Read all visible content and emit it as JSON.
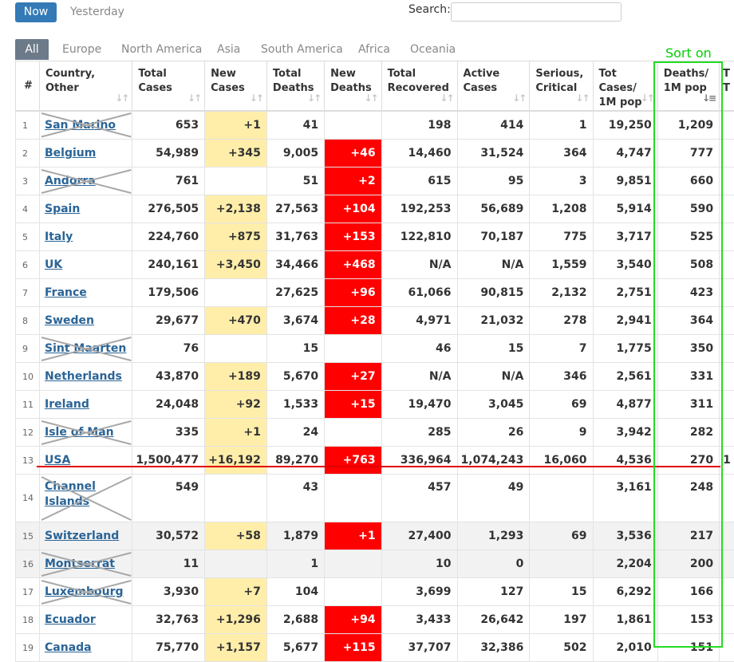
{
  "toolbar": {
    "now_label": "Now",
    "yesterday_label": "Yesterday",
    "search_label": "Search:",
    "search_value": ""
  },
  "tabs": [
    "All",
    "Europe",
    "North America",
    "Asia",
    "South America",
    "Africa",
    "Oceania"
  ],
  "annotation": {
    "sort_on": "Sort on",
    "box_color": "#22dd22",
    "line_color": "#e10000"
  },
  "columns": [
    {
      "line1": "#",
      "line2": ""
    },
    {
      "line1": "Country,",
      "line2": "Other"
    },
    {
      "line1": "Total",
      "line2": "Cases"
    },
    {
      "line1": "New",
      "line2": "Cases"
    },
    {
      "line1": "Total",
      "line2": "Deaths"
    },
    {
      "line1": "New",
      "line2": "Deaths"
    },
    {
      "line1": "Total",
      "line2": "Recovered"
    },
    {
      "line1": "Active",
      "line2": "Cases"
    },
    {
      "line1": "Serious,",
      "line2": "Critical"
    },
    {
      "line1": "Tot Cases/",
      "line2": "1M pop"
    },
    {
      "line1": "Deaths/",
      "line2": "1M pop"
    },
    {
      "line1": "T",
      "line2": "T"
    }
  ],
  "rows": [
    {
      "num": "1",
      "country": "San Marino",
      "total_cases": "653",
      "new_cases": "+1",
      "total_deaths": "41",
      "new_deaths": "",
      "total_recovered": "198",
      "active": "414",
      "serious": "1",
      "cases_per_m": "19,250",
      "deaths_per_m": "1,209",
      "crossed": true
    },
    {
      "num": "2",
      "country": "Belgium",
      "total_cases": "54,989",
      "new_cases": "+345",
      "total_deaths": "9,005",
      "new_deaths": "+46",
      "total_recovered": "14,460",
      "active": "31,524",
      "serious": "364",
      "cases_per_m": "4,747",
      "deaths_per_m": "777",
      "crossed": false
    },
    {
      "num": "3",
      "country": "Andorra",
      "total_cases": "761",
      "new_cases": "",
      "total_deaths": "51",
      "new_deaths": "+2",
      "total_recovered": "615",
      "active": "95",
      "serious": "3",
      "cases_per_m": "9,851",
      "deaths_per_m": "660",
      "crossed": true
    },
    {
      "num": "4",
      "country": "Spain",
      "total_cases": "276,505",
      "new_cases": "+2,138",
      "total_deaths": "27,563",
      "new_deaths": "+104",
      "total_recovered": "192,253",
      "active": "56,689",
      "serious": "1,208",
      "cases_per_m": "5,914",
      "deaths_per_m": "590",
      "crossed": false
    },
    {
      "num": "5",
      "country": "Italy",
      "total_cases": "224,760",
      "new_cases": "+875",
      "total_deaths": "31,763",
      "new_deaths": "+153",
      "total_recovered": "122,810",
      "active": "70,187",
      "serious": "775",
      "cases_per_m": "3,717",
      "deaths_per_m": "525",
      "crossed": false
    },
    {
      "num": "6",
      "country": "UK",
      "total_cases": "240,161",
      "new_cases": "+3,450",
      "total_deaths": "34,466",
      "new_deaths": "+468",
      "total_recovered": "N/A",
      "active": "N/A",
      "serious": "1,559",
      "cases_per_m": "3,540",
      "deaths_per_m": "508",
      "crossed": false
    },
    {
      "num": "7",
      "country": "France",
      "total_cases": "179,506",
      "new_cases": "",
      "total_deaths": "27,625",
      "new_deaths": "+96",
      "total_recovered": "61,066",
      "active": "90,815",
      "serious": "2,132",
      "cases_per_m": "2,751",
      "deaths_per_m": "423",
      "crossed": false
    },
    {
      "num": "8",
      "country": "Sweden",
      "total_cases": "29,677",
      "new_cases": "+470",
      "total_deaths": "3,674",
      "new_deaths": "+28",
      "total_recovered": "4,971",
      "active": "21,032",
      "serious": "278",
      "cases_per_m": "2,941",
      "deaths_per_m": "364",
      "crossed": false
    },
    {
      "num": "9",
      "country": "Sint Maarten",
      "total_cases": "76",
      "new_cases": "",
      "total_deaths": "15",
      "new_deaths": "",
      "total_recovered": "46",
      "active": "15",
      "serious": "7",
      "cases_per_m": "1,775",
      "deaths_per_m": "350",
      "crossed": true
    },
    {
      "num": "10",
      "country": "Netherlands",
      "total_cases": "43,870",
      "new_cases": "+189",
      "total_deaths": "5,670",
      "new_deaths": "+27",
      "total_recovered": "N/A",
      "active": "N/A",
      "serious": "346",
      "cases_per_m": "2,561",
      "deaths_per_m": "331",
      "crossed": false
    },
    {
      "num": "11",
      "country": "Ireland",
      "total_cases": "24,048",
      "new_cases": "+92",
      "total_deaths": "1,533",
      "new_deaths": "+15",
      "total_recovered": "19,470",
      "active": "3,045",
      "serious": "69",
      "cases_per_m": "4,877",
      "deaths_per_m": "311",
      "crossed": false
    },
    {
      "num": "12",
      "country": "Isle of Man",
      "total_cases": "335",
      "new_cases": "+1",
      "total_deaths": "24",
      "new_deaths": "",
      "total_recovered": "285",
      "active": "26",
      "serious": "9",
      "cases_per_m": "3,942",
      "deaths_per_m": "282",
      "crossed": true
    },
    {
      "num": "13",
      "country": "USA",
      "total_cases": "1,500,477",
      "new_cases": "+16,192",
      "total_deaths": "89,270",
      "new_deaths": "+763",
      "total_recovered": "336,964",
      "active": "1,074,243",
      "serious": "16,060",
      "cases_per_m": "4,536",
      "deaths_per_m": "270",
      "crossed": false,
      "extra": "1"
    },
    {
      "num": "14",
      "country": "Channel Islands",
      "total_cases": "549",
      "new_cases": "",
      "total_deaths": "43",
      "new_deaths": "",
      "total_recovered": "457",
      "active": "49",
      "serious": "",
      "cases_per_m": "3,161",
      "deaths_per_m": "248",
      "crossed": true,
      "tall": true
    },
    {
      "num": "15",
      "country": "Switzerland",
      "total_cases": "30,572",
      "new_cases": "+58",
      "total_deaths": "1,879",
      "new_deaths": "+1",
      "total_recovered": "27,400",
      "active": "1,293",
      "serious": "69",
      "cases_per_m": "3,536",
      "deaths_per_m": "217",
      "crossed": false,
      "grey": true
    },
    {
      "num": "16",
      "country": "Montserrat",
      "total_cases": "11",
      "new_cases": "",
      "total_deaths": "1",
      "new_deaths": "",
      "total_recovered": "10",
      "active": "0",
      "serious": "",
      "cases_per_m": "2,204",
      "deaths_per_m": "200",
      "crossed": true,
      "grey": true
    },
    {
      "num": "17",
      "country": "Luxembourg",
      "total_cases": "3,930",
      "new_cases": "+7",
      "total_deaths": "104",
      "new_deaths": "",
      "total_recovered": "3,699",
      "active": "127",
      "serious": "15",
      "cases_per_m": "6,292",
      "deaths_per_m": "166",
      "crossed": true
    },
    {
      "num": "18",
      "country": "Ecuador",
      "total_cases": "32,763",
      "new_cases": "+1,296",
      "total_deaths": "2,688",
      "new_deaths": "+94",
      "total_recovered": "3,433",
      "active": "26,642",
      "serious": "197",
      "cases_per_m": "1,861",
      "deaths_per_m": "153",
      "crossed": false
    },
    {
      "num": "19",
      "country": "Canada",
      "total_cases": "75,770",
      "new_cases": "+1,157",
      "total_deaths": "5,677",
      "new_deaths": "+115",
      "total_recovered": "37,707",
      "active": "32,386",
      "serious": "502",
      "cases_per_m": "2,010",
      "deaths_per_m": "151",
      "crossed": false
    }
  ]
}
